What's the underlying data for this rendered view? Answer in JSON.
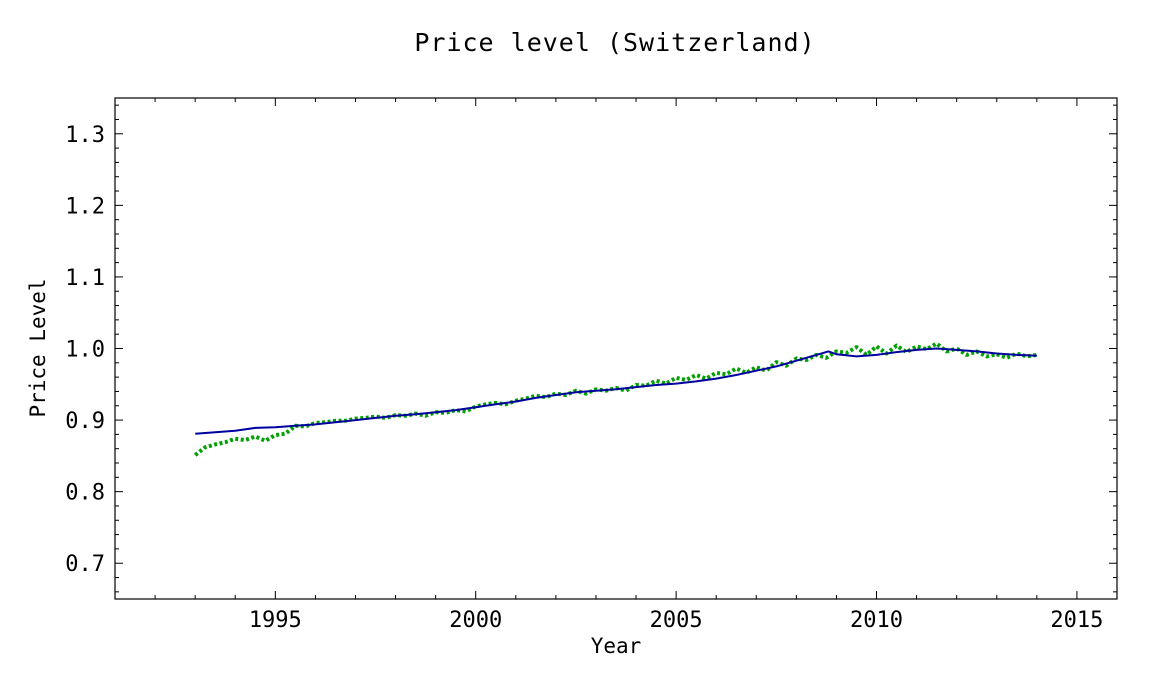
{
  "chart_data": {
    "type": "line",
    "title": "Price level (Switzerland)",
    "xlabel": "Year",
    "ylabel": "Price Level",
    "xlim": [
      1991,
      2016
    ],
    "ylim": [
      0.65,
      1.35
    ],
    "x_ticks": [
      1995,
      2000,
      2005,
      2010,
      2015
    ],
    "y_ticks": [
      0.7,
      0.8,
      0.9,
      1.0,
      1.1,
      1.2,
      1.3
    ],
    "y_tick_labels": [
      "0.7",
      "0.8",
      "0.9",
      "1.0",
      "1.1",
      "1.2",
      "1.3"
    ],
    "x_tick_labels": [
      "1995",
      "2000",
      "2005",
      "2010",
      "2015"
    ],
    "grid": false,
    "series": [
      {
        "color": "#00a000",
        "style": "dotted",
        "x": [
          1993.0,
          1993.25,
          1993.5,
          1993.75,
          1994.0,
          1994.25,
          1994.5,
          1994.75,
          1995.0,
          1995.25,
          1995.5,
          1995.75,
          1996.0,
          1996.25,
          1996.5,
          1996.75,
          1997.0,
          1997.25,
          1997.5,
          1997.75,
          1998.0,
          1998.25,
          1998.5,
          1998.75,
          1999.0,
          1999.25,
          1999.5,
          1999.75,
          2000.0,
          2000.25,
          2000.5,
          2000.75,
          2001.0,
          2001.25,
          2001.5,
          2001.75,
          2002.0,
          2002.25,
          2002.5,
          2002.75,
          2003.0,
          2003.25,
          2003.5,
          2003.75,
          2004.0,
          2004.25,
          2004.5,
          2004.75,
          2005.0,
          2005.25,
          2005.5,
          2005.75,
          2006.0,
          2006.25,
          2006.5,
          2006.75,
          2007.0,
          2007.25,
          2007.5,
          2007.75,
          2008.0,
          2008.25,
          2008.5,
          2008.75,
          2009.0,
          2009.25,
          2009.5,
          2009.75,
          2010.0,
          2010.25,
          2010.5,
          2010.75,
          2011.0,
          2011.25,
          2011.5,
          2011.75,
          2012.0,
          2012.25,
          2012.5,
          2012.75,
          2013.0,
          2013.25,
          2013.5,
          2013.75,
          2014.0
        ],
        "y": [
          0.851,
          0.862,
          0.866,
          0.869,
          0.874,
          0.872,
          0.877,
          0.871,
          0.879,
          0.881,
          0.892,
          0.891,
          0.896,
          0.897,
          0.899,
          0.899,
          0.902,
          0.903,
          0.905,
          0.903,
          0.907,
          0.906,
          0.909,
          0.906,
          0.911,
          0.91,
          0.914,
          0.912,
          0.919,
          0.922,
          0.924,
          0.922,
          0.927,
          0.93,
          0.934,
          0.932,
          0.937,
          0.935,
          0.941,
          0.937,
          0.943,
          0.941,
          0.945,
          0.941,
          0.949,
          0.948,
          0.955,
          0.951,
          0.959,
          0.956,
          0.963,
          0.958,
          0.966,
          0.964,
          0.972,
          0.966,
          0.974,
          0.969,
          0.981,
          0.976,
          0.986,
          0.984,
          0.991,
          0.987,
          0.996,
          0.994,
          1.002,
          0.991,
          1.003,
          0.993,
          1.004,
          0.995,
          1.003,
          0.999,
          1.007,
          0.996,
          1.0,
          0.991,
          0.996,
          0.989,
          0.992,
          0.987,
          0.993,
          0.989,
          0.991
        ]
      },
      {
        "color": "#0000a0",
        "style": "solid",
        "x": [
          1993.0,
          1993.5,
          1994.0,
          1994.5,
          1995.0,
          1995.5,
          1996.0,
          1996.5,
          1997.0,
          1997.5,
          1998.0,
          1998.5,
          1999.0,
          1999.5,
          2000.0,
          2000.5,
          2001.0,
          2001.5,
          2002.0,
          2002.5,
          2003.0,
          2003.5,
          2004.0,
          2004.5,
          2005.0,
          2005.5,
          2006.0,
          2006.5,
          2007.0,
          2007.5,
          2008.0,
          2008.5,
          2008.8,
          2009.0,
          2009.5,
          2010.0,
          2010.5,
          2011.0,
          2011.5,
          2012.0,
          2012.5,
          2013.0,
          2013.5,
          2014.0
        ],
        "y": [
          0.881,
          0.883,
          0.885,
          0.889,
          0.89,
          0.892,
          0.894,
          0.897,
          0.9,
          0.903,
          0.906,
          0.908,
          0.911,
          0.914,
          0.918,
          0.922,
          0.926,
          0.931,
          0.935,
          0.939,
          0.941,
          0.943,
          0.946,
          0.949,
          0.951,
          0.954,
          0.958,
          0.963,
          0.969,
          0.975,
          0.983,
          0.991,
          0.996,
          0.992,
          0.989,
          0.991,
          0.995,
          0.998,
          1.0,
          0.998,
          0.996,
          0.993,
          0.991,
          0.99
        ]
      }
    ]
  }
}
